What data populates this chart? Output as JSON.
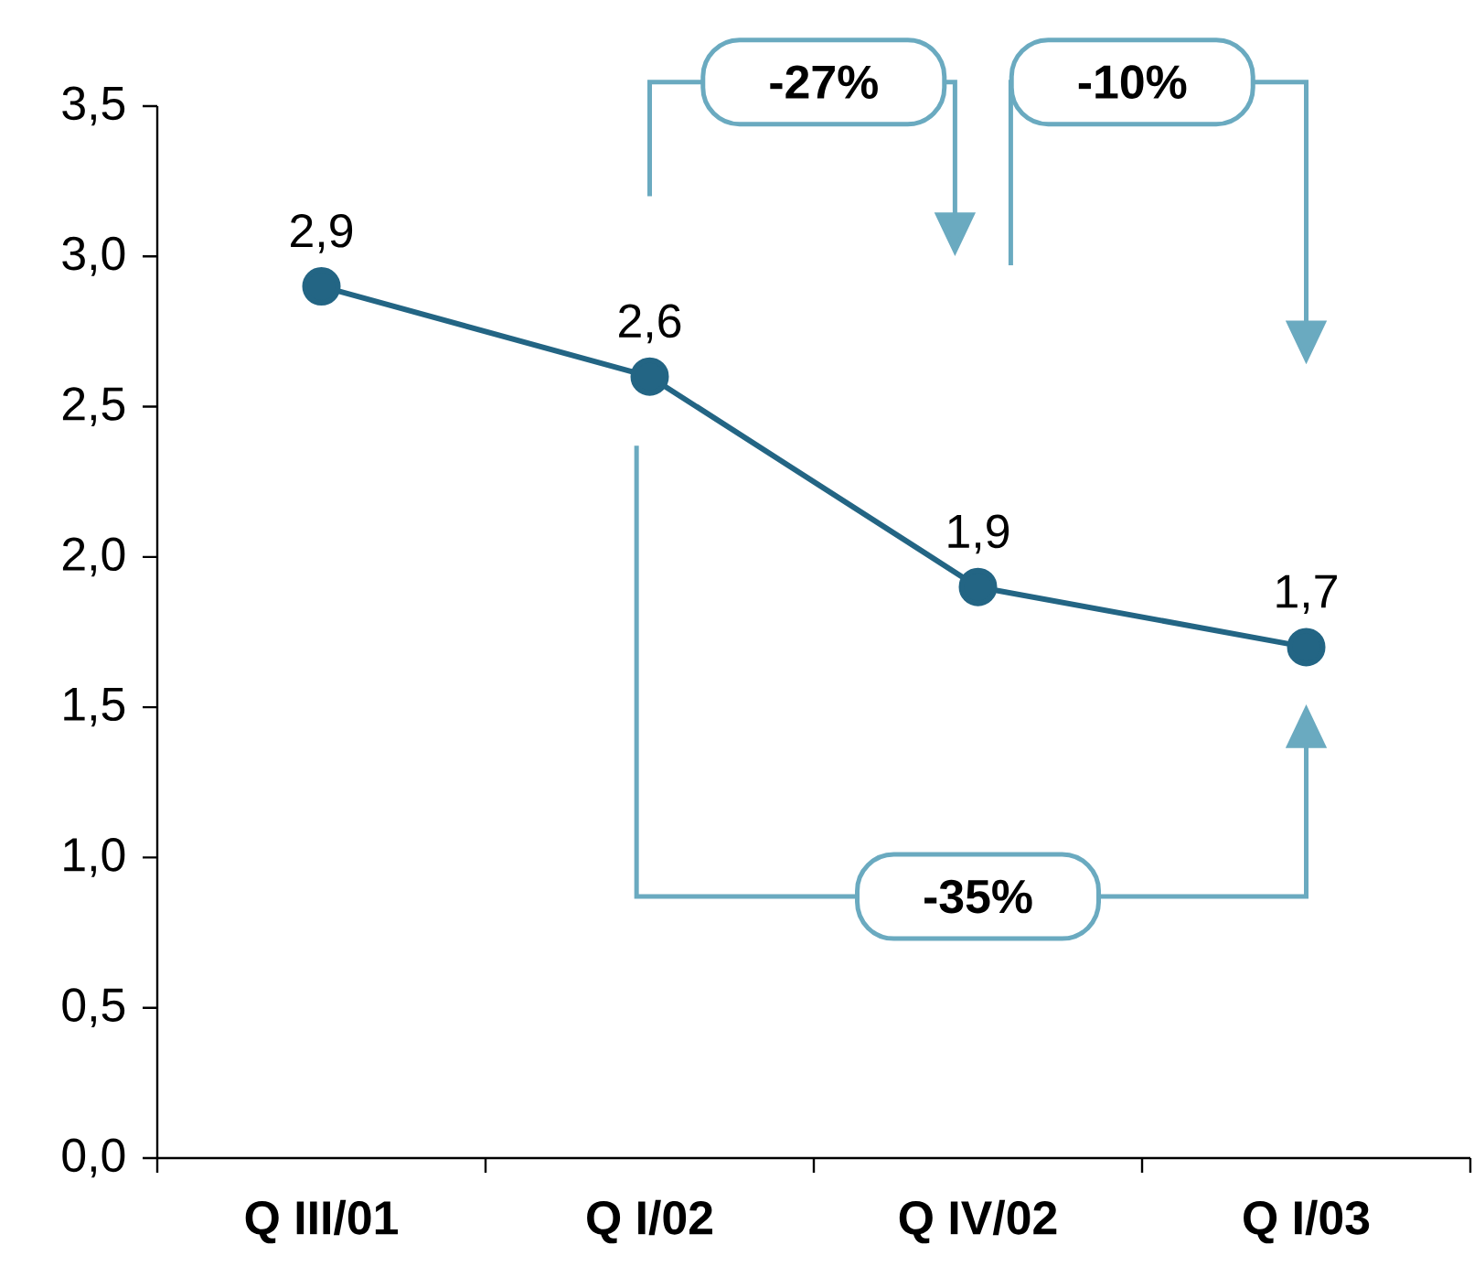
{
  "chart_data": {
    "type": "line",
    "categories": [
      "Q III/01",
      "Q I/02",
      "Q IV/02",
      "Q I/03"
    ],
    "values": [
      2.9,
      2.6,
      1.9,
      1.7
    ],
    "value_labels": [
      "2,9",
      "2,6",
      "1,9",
      "1,7"
    ],
    "color": "#236584",
    "marker": "circle",
    "ylim": [
      0,
      3.5
    ],
    "yticks": [
      {
        "value": 0,
        "label": "0,0"
      },
      {
        "value": 0.5,
        "label": "0,5"
      },
      {
        "value": 1,
        "label": "1,0"
      },
      {
        "value": 1.5,
        "label": "1,5"
      },
      {
        "value": 2,
        "label": "2,0"
      },
      {
        "value": 2.5,
        "label": "2,5"
      },
      {
        "value": 3,
        "label": "3,0"
      },
      {
        "value": 3.5,
        "label": "3,5"
      }
    ],
    "annotations": [
      "-27%",
      "-10%",
      "-35%"
    ]
  }
}
